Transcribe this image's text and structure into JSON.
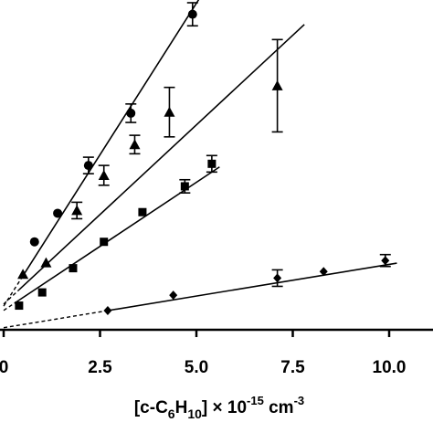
{
  "chart_data": {
    "type": "scatter",
    "title": "",
    "xlabel": {
      "prefix": "[c-C",
      "sub1": "6",
      "mid": "H",
      "sub2": "10",
      "after": "] × 10",
      "exp1": "-15",
      "unit": " cm",
      "exp2": "-3"
    },
    "ylabel": "",
    "xlim": [
      0,
      10.9
    ],
    "ylim": [
      0,
      1
    ],
    "x_ticks": [
      {
        "value": 0,
        "label": "0"
      },
      {
        "value": 2.5,
        "label": "2.5"
      },
      {
        "value": 5.0,
        "label": "5.0"
      },
      {
        "value": 7.5,
        "label": "7.5"
      },
      {
        "value": 10.0,
        "label": "10.0"
      }
    ],
    "grid": false,
    "legend": "none",
    "series": [
      {
        "marker": "circle",
        "points": [
          {
            "x": 0.8,
            "y": 0.2667,
            "err": 0
          },
          {
            "x": 1.4,
            "y": 0.3533,
            "err": 0
          },
          {
            "x": 2.2,
            "y": 0.4983,
            "err": 0.025
          },
          {
            "x": 3.3,
            "y": 0.6567,
            "err": 0.028
          },
          {
            "x": 4.9,
            "y": 0.9567,
            "err": 0.035
          }
        ],
        "fit": {
          "slope": 0.1837,
          "intercept": 0.0717,
          "x_from": 0.55,
          "x_to": 5.1,
          "dash_from": 0,
          "dash_to": 0.55
        }
      },
      {
        "marker": "triangle",
        "points": [
          {
            "x": 0.5,
            "y": 0.1683,
            "err": 0
          },
          {
            "x": 1.1,
            "y": 0.2033,
            "err": 0
          },
          {
            "x": 1.9,
            "y": 0.3617,
            "err": 0.025
          },
          {
            "x": 2.6,
            "y": 0.4683,
            "err": 0.03
          },
          {
            "x": 3.4,
            "y": 0.5617,
            "err": 0.028
          },
          {
            "x": 4.3,
            "y": 0.66,
            "err": 0.075
          },
          {
            "x": 7.1,
            "y": 0.74,
            "err": 0.14
          }
        ],
        "fit": {
          "slope": 0.1087,
          "intercept": 0.0778,
          "x_from": 0.4,
          "x_to": 7.8,
          "dash_from": 0,
          "dash_to": 0.4
        }
      },
      {
        "marker": "square",
        "points": [
          {
            "x": 0.4,
            "y": 0.0733,
            "err": 0
          },
          {
            "x": 1.0,
            "y": 0.1133,
            "err": 0
          },
          {
            "x": 1.8,
            "y": 0.1867,
            "err": 0
          },
          {
            "x": 2.6,
            "y": 0.2667,
            "err": 0
          },
          {
            "x": 3.6,
            "y": 0.3567,
            "err": 0
          },
          {
            "x": 4.7,
            "y": 0.435,
            "err": 0.02
          },
          {
            "x": 5.4,
            "y": 0.5033,
            "err": 0.025
          }
        ],
        "fit": {
          "slope": 0.0777,
          "intercept": 0.0587,
          "x_from": 0.3,
          "x_to": 5.6,
          "dash_from": 0,
          "dash_to": 0.3
        }
      },
      {
        "marker": "diamond",
        "points": [
          {
            "x": 2.7,
            "y": 0.0583,
            "err": 0
          },
          {
            "x": 4.4,
            "y": 0.105,
            "err": 0
          },
          {
            "x": 7.1,
            "y": 0.1567,
            "err": 0.025
          },
          {
            "x": 8.3,
            "y": 0.1767,
            "err": 0
          },
          {
            "x": 9.9,
            "y": 0.21,
            "err": 0.018
          }
        ],
        "fit": {
          "slope": 0.0192,
          "intercept": 0.0063,
          "x_from": 2.7,
          "x_to": 10.2,
          "dash_from": 0,
          "dash_to": 2.7
        }
      }
    ]
  }
}
